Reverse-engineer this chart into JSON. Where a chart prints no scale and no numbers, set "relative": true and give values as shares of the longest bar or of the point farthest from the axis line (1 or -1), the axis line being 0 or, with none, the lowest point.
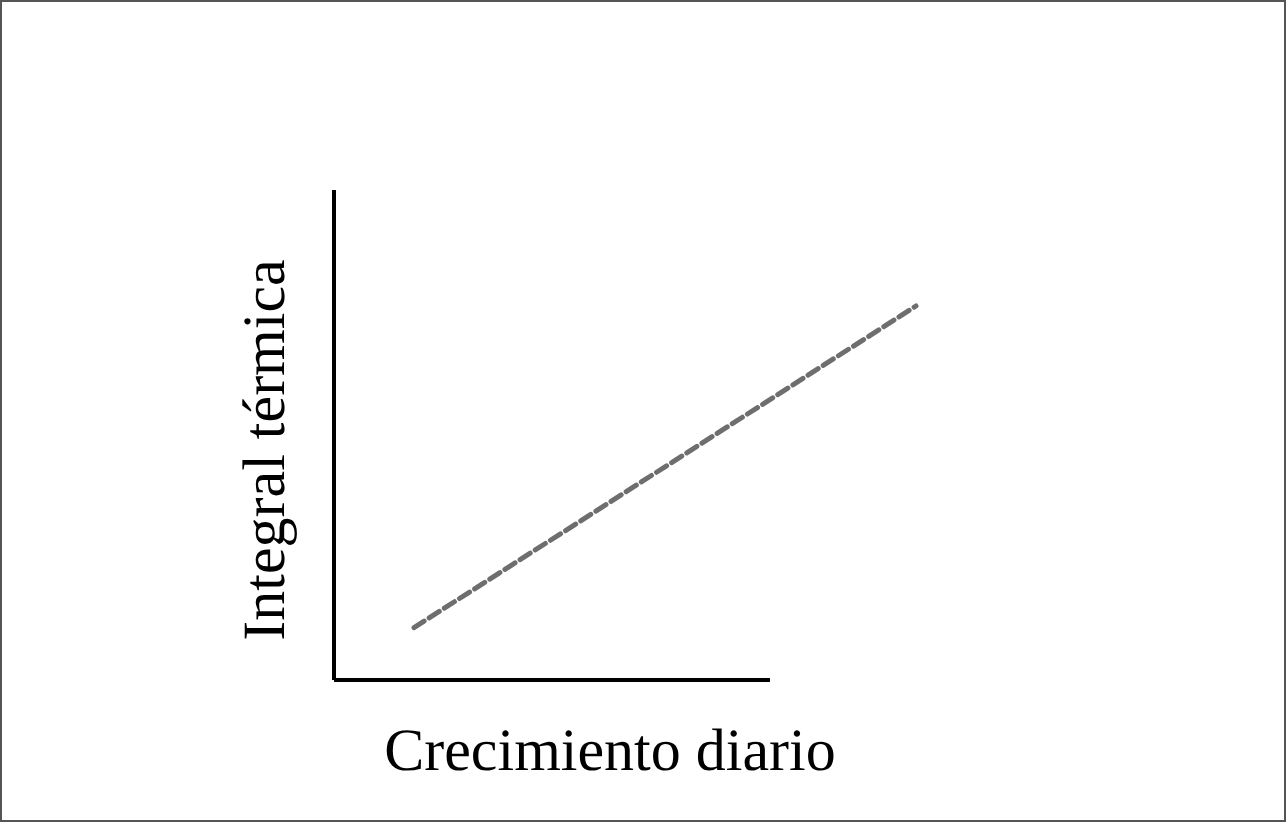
{
  "chart_data": {
    "type": "line",
    "relative": true,
    "xlabel": "Crecimiento diario",
    "ylabel": "Integral térmica",
    "categories": [
      null,
      null
    ],
    "series": [
      {
        "color": "#6e6e6e",
        "values": [
          0.14,
          1
        ]
      }
    ],
    "line_style": "dashed"
  }
}
